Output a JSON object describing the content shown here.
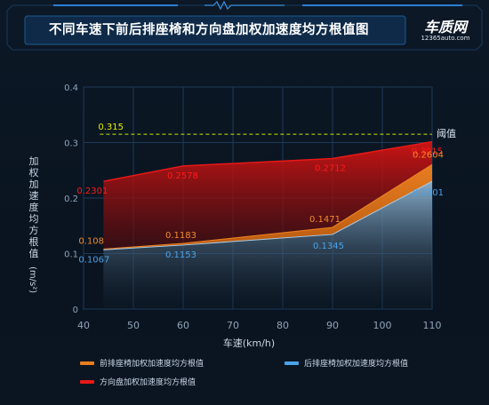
{
  "title": "不同车速下前后排座椅和方向盘加权加速度均方根值图",
  "logo": {
    "main": "车质网",
    "sub": "12365auto.com"
  },
  "colors": {
    "front_seat": "#e87d20",
    "rear_seat": "#4aa3e8",
    "steering": "#e81818",
    "threshold": "#c8e800",
    "accent": "#1f6fb8"
  },
  "chart_data": {
    "type": "area",
    "title": "不同车速下前后排座椅和方向盘加权加速度均方根值图",
    "xlabel": "车速(km/h)",
    "ylabel": "加权加速度均方根值(m/s²)",
    "x_ticks": [
      40,
      50,
      60,
      70,
      80,
      90,
      100,
      110
    ],
    "y_ticks": [
      0,
      0.1,
      0.2,
      0.3,
      0.4
    ],
    "xlim": [
      40,
      110
    ],
    "ylim": [
      0,
      0.4
    ],
    "x": [
      44,
      60,
      90,
      110
    ],
    "series": [
      {
        "name": "前排座椅加权加速度均方根值",
        "color": "#e87d20",
        "values": [
          0.108,
          0.1183,
          0.1471,
          0.2604
        ],
        "labels": [
          "0.108",
          "0.1183",
          "0.1471",
          "0.2604"
        ]
      },
      {
        "name": "后排座椅加权加速度均方根值",
        "color": "#4aa3e8",
        "values": [
          0.1067,
          0.1153,
          0.1345,
          0.2301
        ],
        "labels": [
          "0.1067",
          "0.1153",
          "0.1345",
          "0.2301"
        ]
      },
      {
        "name": "方向盘加权加速度均方根值",
        "color": "#e81818",
        "values": [
          0.2301,
          0.2578,
          0.2712,
          0.3015
        ],
        "labels": [
          "0.2301",
          "0.2578",
          "0.2712",
          "0.3015"
        ]
      }
    ],
    "threshold": {
      "value": 0.315,
      "value_label": "0.315",
      "label": "阈值"
    },
    "grid": true,
    "legend_position": "bottom"
  }
}
